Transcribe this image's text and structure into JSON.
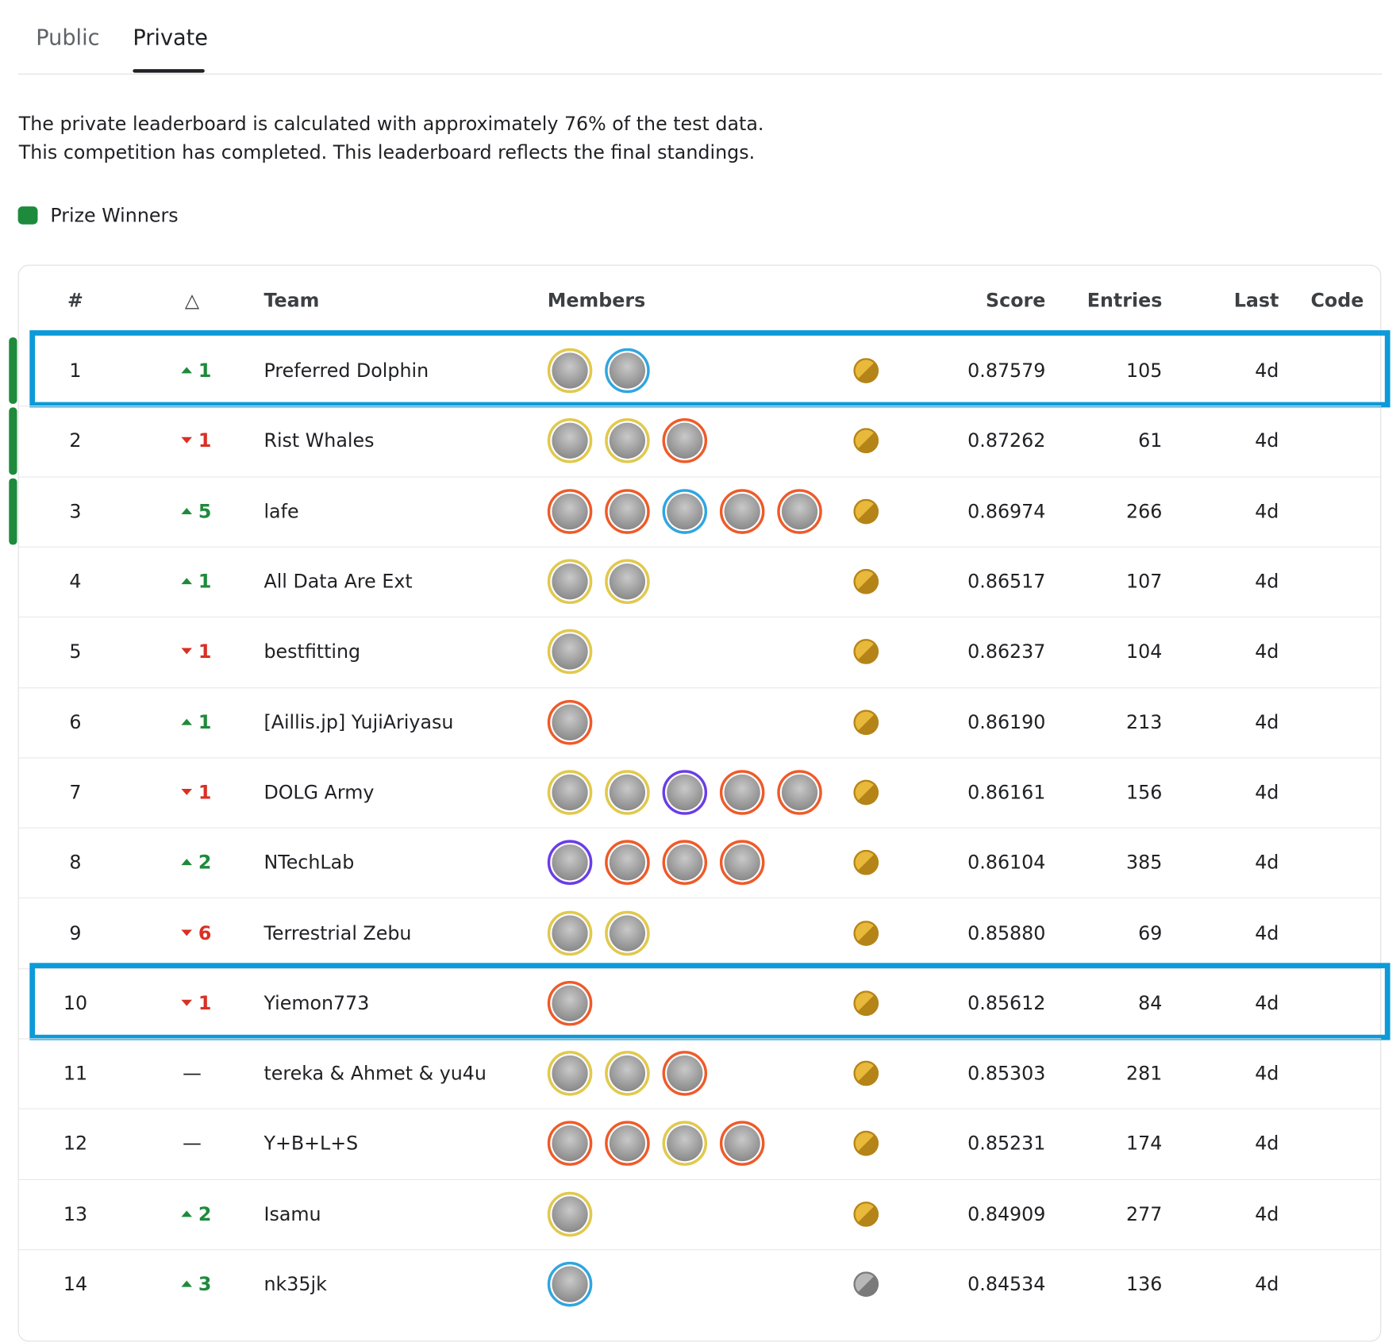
{
  "tabs": [
    "Public",
    "Private"
  ],
  "active_tab": 1,
  "description": [
    "The private leaderboard is calculated with approximately 76% of the test data.",
    "This competition has completed. This leaderboard reflects the final standings."
  ],
  "legend": {
    "label": "Prize Winners",
    "color": "#1e8a3c"
  },
  "table": {
    "headers": [
      "#",
      "△",
      "Team",
      "Members",
      "Score",
      "Entries",
      "Last",
      "Code"
    ],
    "rows": [
      {
        "rank": 1,
        "direction": "up",
        "change": 1,
        "team": "Preferred Dolphin",
        "member_rings": [
          "#e2c94a",
          "#2fa6e0"
        ],
        "medal": "gold",
        "score": "0.87579",
        "entries": 105,
        "last": "4d",
        "prize": true,
        "highlight": true
      },
      {
        "rank": 2,
        "direction": "down",
        "change": 1,
        "team": "Rist Whales",
        "member_rings": [
          "#e2c94a",
          "#e2c94a",
          "#f05a28"
        ],
        "medal": "gold",
        "score": "0.87262",
        "entries": 61,
        "last": "4d",
        "prize": true,
        "highlight": false
      },
      {
        "rank": 3,
        "direction": "up",
        "change": 5,
        "team": "lafe",
        "member_rings": [
          "#f05a28",
          "#f05a28",
          "#2fa6e0",
          "#f05a28",
          "#f05a28"
        ],
        "medal": "gold",
        "score": "0.86974",
        "entries": 266,
        "last": "4d",
        "prize": true,
        "highlight": false
      },
      {
        "rank": 4,
        "direction": "up",
        "change": 1,
        "team": "All Data Are Ext",
        "member_rings": [
          "#e2c94a",
          "#e2c94a"
        ],
        "medal": "gold",
        "score": "0.86517",
        "entries": 107,
        "last": "4d",
        "prize": false,
        "highlight": false
      },
      {
        "rank": 5,
        "direction": "down",
        "change": 1,
        "team": "bestfitting",
        "member_rings": [
          "#e2c94a"
        ],
        "medal": "gold",
        "score": "0.86237",
        "entries": 104,
        "last": "4d",
        "prize": false,
        "highlight": false
      },
      {
        "rank": 6,
        "direction": "up",
        "change": 1,
        "team": "[Aillis.jp] YujiAriyasu",
        "member_rings": [
          "#f05a28"
        ],
        "medal": "gold",
        "score": "0.86190",
        "entries": 213,
        "last": "4d",
        "prize": false,
        "highlight": false
      },
      {
        "rank": 7,
        "direction": "down",
        "change": 1,
        "team": "DOLG Army",
        "member_rings": [
          "#e2c94a",
          "#e2c94a",
          "#6a3de8",
          "#f05a28",
          "#f05a28"
        ],
        "medal": "gold",
        "score": "0.86161",
        "entries": 156,
        "last": "4d",
        "prize": false,
        "highlight": false
      },
      {
        "rank": 8,
        "direction": "up",
        "change": 2,
        "team": "NTechLab",
        "member_rings": [
          "#6a3de8",
          "#f05a28",
          "#f05a28",
          "#f05a28"
        ],
        "medal": "gold",
        "score": "0.86104",
        "entries": 385,
        "last": "4d",
        "prize": false,
        "highlight": false
      },
      {
        "rank": 9,
        "direction": "down",
        "change": 6,
        "team": "Terrestrial Zebu",
        "member_rings": [
          "#e2c94a",
          "#e2c94a"
        ],
        "medal": "gold",
        "score": "0.85880",
        "entries": 69,
        "last": "4d",
        "prize": false,
        "highlight": false
      },
      {
        "rank": 10,
        "direction": "down",
        "change": 1,
        "team": "Yiemon773",
        "member_rings": [
          "#f05a28"
        ],
        "medal": "gold",
        "score": "0.85612",
        "entries": 84,
        "last": "4d",
        "prize": false,
        "highlight": true
      },
      {
        "rank": 11,
        "direction": "none",
        "change": "—",
        "team": "tereka & Ahmet & yu4u",
        "member_rings": [
          "#e2c94a",
          "#e2c94a",
          "#f05a28"
        ],
        "medal": "gold",
        "score": "0.85303",
        "entries": 281,
        "last": "4d",
        "prize": false,
        "highlight": false
      },
      {
        "rank": 12,
        "direction": "none",
        "change": "—",
        "team": "Y+B+L+S",
        "member_rings": [
          "#f05a28",
          "#f05a28",
          "#e2c94a",
          "#f05a28"
        ],
        "medal": "gold",
        "score": "0.85231",
        "entries": 174,
        "last": "4d",
        "prize": false,
        "highlight": false
      },
      {
        "rank": 13,
        "direction": "up",
        "change": 2,
        "team": "Isamu",
        "member_rings": [
          "#e2c94a"
        ],
        "medal": "gold",
        "score": "0.84909",
        "entries": 277,
        "last": "4d",
        "prize": false,
        "highlight": false
      },
      {
        "rank": 14,
        "direction": "up",
        "change": 3,
        "team": "nk35jk",
        "member_rings": [
          "#2fa6e0"
        ],
        "medal": "silver",
        "score": "0.84534",
        "entries": 136,
        "last": "4d",
        "prize": false,
        "highlight": false
      }
    ]
  }
}
